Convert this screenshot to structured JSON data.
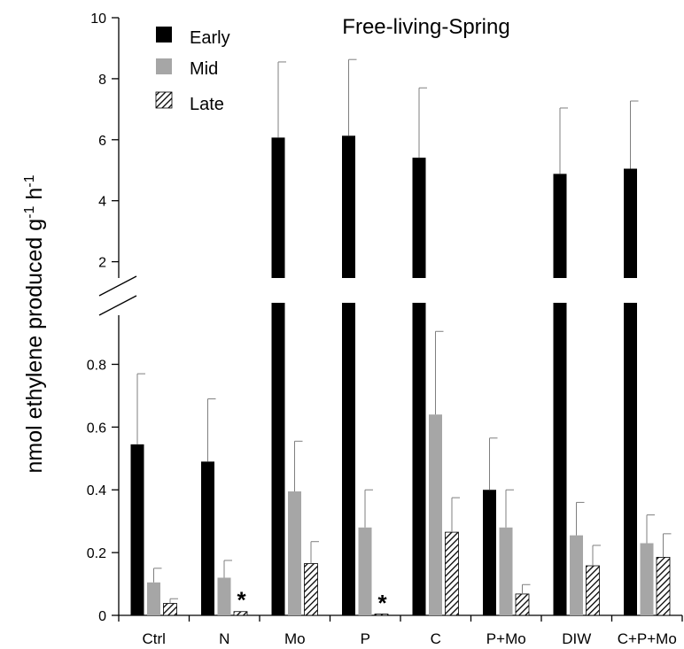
{
  "chart_data": {
    "type": "bar",
    "title": "Free-living-Spring",
    "xlabel": "",
    "ylabel": "nmol ethylene produced g-1 h-1",
    "ylabel_parts": {
      "main": "nmol ethylene produced g",
      "sup1": "-1",
      "mid": " h",
      "sup2": "-1"
    },
    "categories": [
      "Ctrl",
      "N",
      "Mo",
      "P",
      "C",
      "P+Mo",
      "DIW",
      "C+P+Mo"
    ],
    "series": [
      {
        "name": "Early",
        "color": "#000000",
        "pattern": "solid",
        "values": [
          0.545,
          0.49,
          6.07,
          6.13,
          5.41,
          0.4,
          4.88,
          5.05
        ],
        "error": [
          0.225,
          0.2,
          2.48,
          2.5,
          2.29,
          0.165,
          2.16,
          2.22
        ]
      },
      {
        "name": "Mid",
        "color": "#a6a6a6",
        "pattern": "solid",
        "values": [
          0.105,
          0.12,
          0.395,
          0.28,
          0.64,
          0.28,
          0.255,
          0.23
        ],
        "error": [
          0.045,
          0.055,
          0.16,
          0.12,
          0.265,
          0.12,
          0.105,
          0.09
        ]
      },
      {
        "name": "Late",
        "color": "#000000",
        "pattern": "diagonal-hatch",
        "values": [
          0.038,
          0.012,
          0.165,
          0.003,
          0.265,
          0.068,
          0.158,
          0.185
        ],
        "error": [
          0.015,
          0.0,
          0.07,
          0.0,
          0.11,
          0.03,
          0.065,
          0.075
        ]
      }
    ],
    "y_axis_lower": {
      "range": [
        0,
        0.9
      ],
      "ticks": [
        0,
        0.2,
        0.4,
        0.6,
        0.8
      ],
      "tick_labels": [
        "0",
        "0.2",
        "0.4",
        "0.6",
        "0.8"
      ]
    },
    "y_axis_upper": {
      "range": [
        1.1,
        10
      ],
      "ticks": [
        2,
        4,
        6,
        8,
        10
      ],
      "tick_labels": [
        "2",
        "4",
        "6",
        "8",
        "10"
      ]
    },
    "axis_break": true,
    "annotations": [
      {
        "text": "*",
        "category": "N",
        "series": "Late"
      },
      {
        "text": "*",
        "category": "P",
        "series": "Late"
      }
    ],
    "legend_position": "top-left",
    "grid": false
  }
}
